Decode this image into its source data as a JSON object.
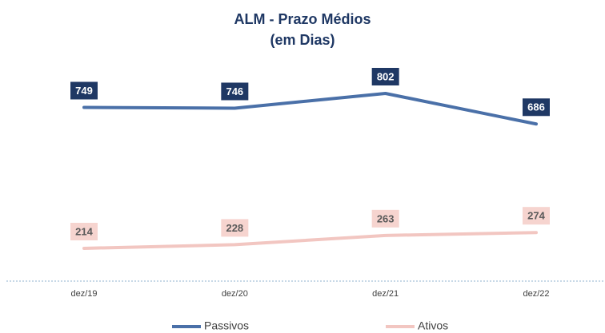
{
  "chart_data": {
    "type": "line",
    "title": "ALM - Prazo Médios",
    "subtitle": "(em Dias)",
    "categories": [
      "dez/19",
      "dez/20",
      "dez/21",
      "dez/22"
    ],
    "series": [
      {
        "name": "Passivos",
        "color": "#4a70a8",
        "label_color": "#1f3864",
        "label_text_color": "#ffffff",
        "values": [
          749,
          746,
          802,
          686
        ]
      },
      {
        "name": "Ativos",
        "color": "#f2c6c1",
        "label_color": "#f6d4cf",
        "label_text_color": "#595959",
        "values": [
          214,
          228,
          263,
          274
        ]
      }
    ]
  }
}
